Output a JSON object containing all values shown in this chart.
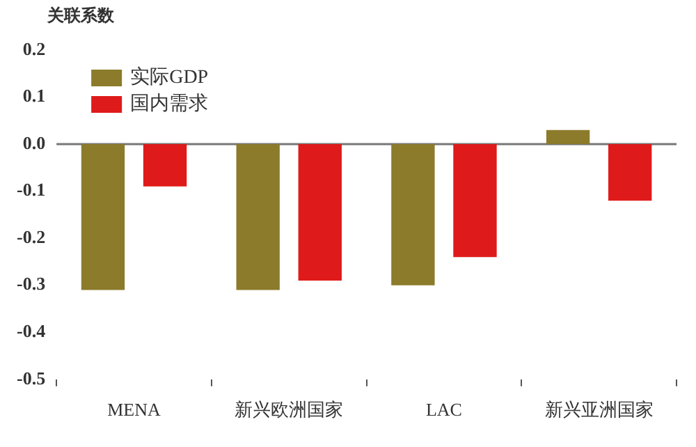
{
  "chart_data": {
    "type": "bar",
    "ylabel": "关联系数",
    "categories": [
      "MENA",
      "新兴欧洲国家",
      "LAC",
      "新兴亚洲国家"
    ],
    "series": [
      {
        "name": "实际GDP",
        "color": "#8b7b2b",
        "values": [
          -0.31,
          -0.31,
          -0.3,
          0.03
        ]
      },
      {
        "name": "国内需求",
        "color": "#df1a1a",
        "values": [
          -0.09,
          -0.29,
          -0.24,
          -0.12
        ]
      }
    ],
    "ylim": [
      -0.5,
      0.2
    ],
    "yticks": [
      {
        "value": 0.2,
        "label": "0.2"
      },
      {
        "value": 0.1,
        "label": "0.1"
      },
      {
        "value": 0,
        "label": "0.0"
      },
      {
        "value": -0.1,
        "label": "-0.1"
      },
      {
        "value": -0.2,
        "label": "-0.2"
      },
      {
        "value": -0.3,
        "label": "-0.3"
      },
      {
        "value": -0.4,
        "label": "-0.4"
      },
      {
        "value": -0.5,
        "label": "-0.5"
      }
    ],
    "legend": "top left"
  }
}
